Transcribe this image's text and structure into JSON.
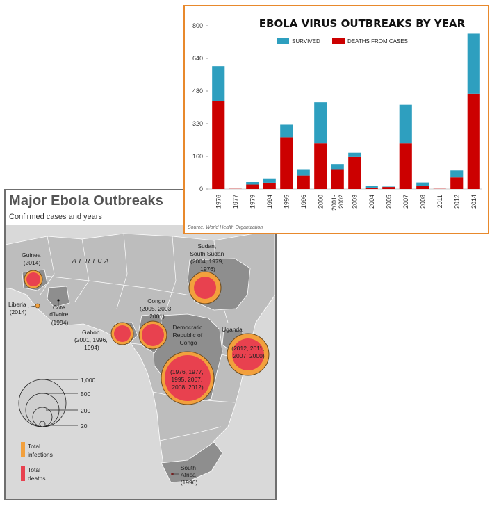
{
  "map": {
    "title": "Major Ebola Outbreaks",
    "subtitle": "Confirmed cases and years",
    "region_label": "A F R I C A",
    "locations": [
      {
        "id": "guinea",
        "label": [
          "Guinea",
          "(2014)"
        ]
      },
      {
        "id": "liberia",
        "label": [
          "Liberia",
          "(2014)"
        ]
      },
      {
        "id": "cote-divoire",
        "label": [
          "Cote",
          "d'Ivoire",
          "(1994)"
        ]
      },
      {
        "id": "gabon",
        "label": [
          "Gabon",
          "(2001, 1996,",
          "1994)"
        ]
      },
      {
        "id": "congo",
        "label": [
          "Congo",
          "(2005, 2003,",
          "2001)"
        ]
      },
      {
        "id": "sudan",
        "label": [
          "Sudan,",
          "South Sudan",
          "(2004, 1979,",
          "1976)"
        ]
      },
      {
        "id": "uganda",
        "label": [
          "Uganda"
        ]
      },
      {
        "id": "uganda-years",
        "label": [
          "(2012, 2011,",
          "2007, 2000)"
        ]
      },
      {
        "id": "drc",
        "label": [
          "Democratic",
          "Republic of",
          "Congo"
        ]
      },
      {
        "id": "drc-years",
        "label": [
          "(1976, 1977,",
          "1995, 2007,",
          "2008, 2012)"
        ]
      },
      {
        "id": "south-africa",
        "label": [
          "South",
          "Africa",
          "(1996)"
        ]
      }
    ],
    "size_legend": [
      "1,000",
      "500",
      "200",
      "20"
    ],
    "color_legend": [
      {
        "label": [
          "Total",
          "infections"
        ],
        "color": "#f2a03d"
      },
      {
        "label": [
          "Total",
          "deaths"
        ],
        "color": "#e8414f"
      }
    ]
  },
  "chart_data": {
    "type": "bar",
    "stacked": true,
    "title": "EBOLA VIRUS OUTBREAKS BY YEAR",
    "source": "Source: World Health Organization",
    "categories": [
      "1976",
      "1977",
      "1979",
      "1994",
      "1995",
      "1996",
      "2000",
      "2001-2002",
      "2003",
      "2004",
      "2005",
      "2007",
      "2008",
      "2011",
      "2012",
      "2014"
    ],
    "ylim": [
      0,
      800
    ],
    "yticks": [
      0,
      160,
      320,
      480,
      640,
      800
    ],
    "legend_position": "top",
    "series": [
      {
        "name": "DEATHS FROM CASES",
        "color": "#cc0000",
        "values": [
          431,
          1,
          22,
          31,
          254,
          66,
          224,
          97,
          157,
          7,
          10,
          224,
          14,
          1,
          57,
          467
        ]
      },
      {
        "name": "SURVIVED",
        "color": "#2e9fbf",
        "values": [
          171,
          0,
          12,
          21,
          61,
          31,
          201,
          25,
          21,
          10,
          2,
          189,
          18,
          0,
          34,
          294
        ]
      }
    ]
  }
}
